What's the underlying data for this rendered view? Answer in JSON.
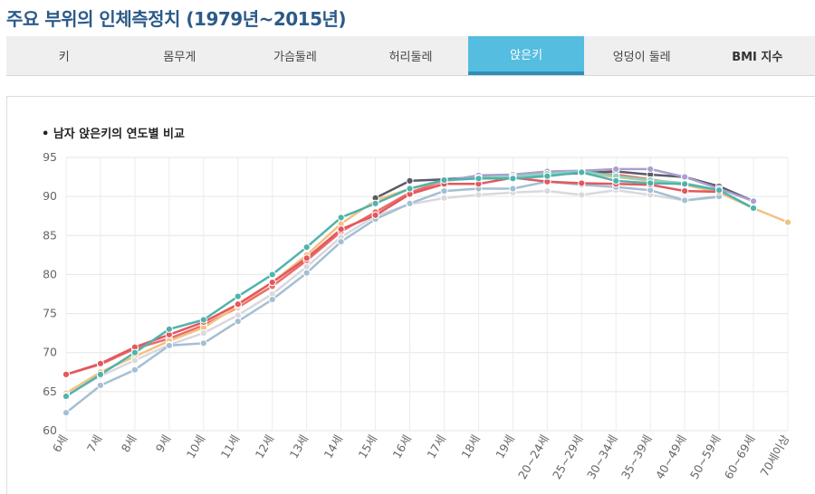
{
  "page": {
    "title": "주요 부위의 인체측정치 (1979년~2015년)"
  },
  "tabs": [
    {
      "label": "키",
      "active": false
    },
    {
      "label": "몸무게",
      "active": false
    },
    {
      "label": "가슴둘레",
      "active": false
    },
    {
      "label": "허리둘레",
      "active": false
    },
    {
      "label": "앉은키",
      "active": true
    },
    {
      "label": "엉덩이 둘레",
      "active": false
    },
    {
      "label": "BMI 지수",
      "active": false
    }
  ],
  "chart_data": {
    "type": "line",
    "title": "• 남자 앉은키의 연도별 비교",
    "xlabel": "",
    "ylabel": "",
    "ylim": [
      60,
      95
    ],
    "yticks": [
      60,
      65,
      70,
      75,
      80,
      85,
      90,
      95
    ],
    "grid": true,
    "categories": [
      "6세",
      "7세",
      "8세",
      "9세",
      "10세",
      "11세",
      "12세",
      "13세",
      "14세",
      "15세",
      "16세",
      "17세",
      "18세",
      "19세",
      "20~24세",
      "25~29세",
      "30~34세",
      "35~39세",
      "40~49세",
      "50~59세",
      "60~69세",
      "70세이상"
    ],
    "series": [
      {
        "color": "#ec6b6b",
        "values": [
          67.2,
          68.5,
          70.5,
          71.8,
          73.5,
          75.8,
          78.5,
          81.8,
          85.5,
          88.0,
          90.5,
          92.0,
          92.5,
          92.7,
          92.8,
          93.0,
          92.8,
          92.2,
          91.5,
          90.8,
          null,
          null
        ]
      },
      {
        "color": "#f2c182",
        "values": [
          64.8,
          67.5,
          69.5,
          71.5,
          73.2,
          76.0,
          79.0,
          82.5,
          86.5,
          89.5,
          91.0,
          92.0,
          92.5,
          92.8,
          93.2,
          93.0,
          92.5,
          92.0,
          91.5,
          90.5,
          88.5,
          86.7
        ]
      },
      {
        "color": "#5b5b66",
        "values": [
          null,
          null,
          null,
          null,
          null,
          null,
          null,
          null,
          null,
          89.8,
          92.0,
          92.2,
          92.5,
          92.8,
          92.8,
          93.0,
          93.2,
          92.8,
          92.5,
          91.3,
          89.4,
          null
        ]
      },
      {
        "color": "#ab9fd0",
        "values": [
          null,
          null,
          null,
          null,
          null,
          null,
          null,
          null,
          null,
          null,
          null,
          92.0,
          92.7,
          92.8,
          93.2,
          93.3,
          93.5,
          93.5,
          92.5,
          91.0,
          89.4,
          null
        ]
      },
      {
        "color": "#8bd3bd",
        "values": [
          null,
          null,
          null,
          null,
          null,
          null,
          null,
          null,
          null,
          null,
          null,
          92.0,
          92.4,
          92.6,
          92.9,
          93.2,
          92.6,
          92.1,
          91.7,
          90.8,
          88.5,
          null
        ]
      },
      {
        "color": "#d9d9dd",
        "values": [
          64.5,
          67.0,
          69.0,
          71.0,
          72.5,
          74.8,
          77.5,
          81.0,
          84.8,
          87.5,
          89.0,
          89.8,
          90.2,
          90.5,
          90.7,
          90.2,
          90.8,
          90.2,
          89.5,
          89.9,
          null,
          null
        ]
      },
      {
        "color": "#a4bfd3",
        "values": [
          62.3,
          65.8,
          67.8,
          70.9,
          71.2,
          74.0,
          76.8,
          80.2,
          84.2,
          87.1,
          89.1,
          90.7,
          91.0,
          91.0,
          91.9,
          91.5,
          91.2,
          90.8,
          89.5,
          90.0,
          null,
          null
        ]
      },
      {
        "color": "#e2585d",
        "values": [
          67.2,
          68.6,
          70.7,
          72.3,
          73.9,
          76.2,
          79.0,
          82.1,
          85.8,
          87.6,
          90.3,
          91.6,
          91.6,
          92.4,
          91.9,
          91.7,
          91.6,
          91.5,
          90.7,
          90.6,
          null,
          null
        ]
      },
      {
        "color": "#4fb3ad",
        "values": [
          64.4,
          67.2,
          70.0,
          73.0,
          74.2,
          77.2,
          80.0,
          83.5,
          87.3,
          89.1,
          91.0,
          92.1,
          92.3,
          92.3,
          92.6,
          93.1,
          92.0,
          91.7,
          91.6,
          90.8,
          88.5,
          null
        ]
      }
    ]
  }
}
